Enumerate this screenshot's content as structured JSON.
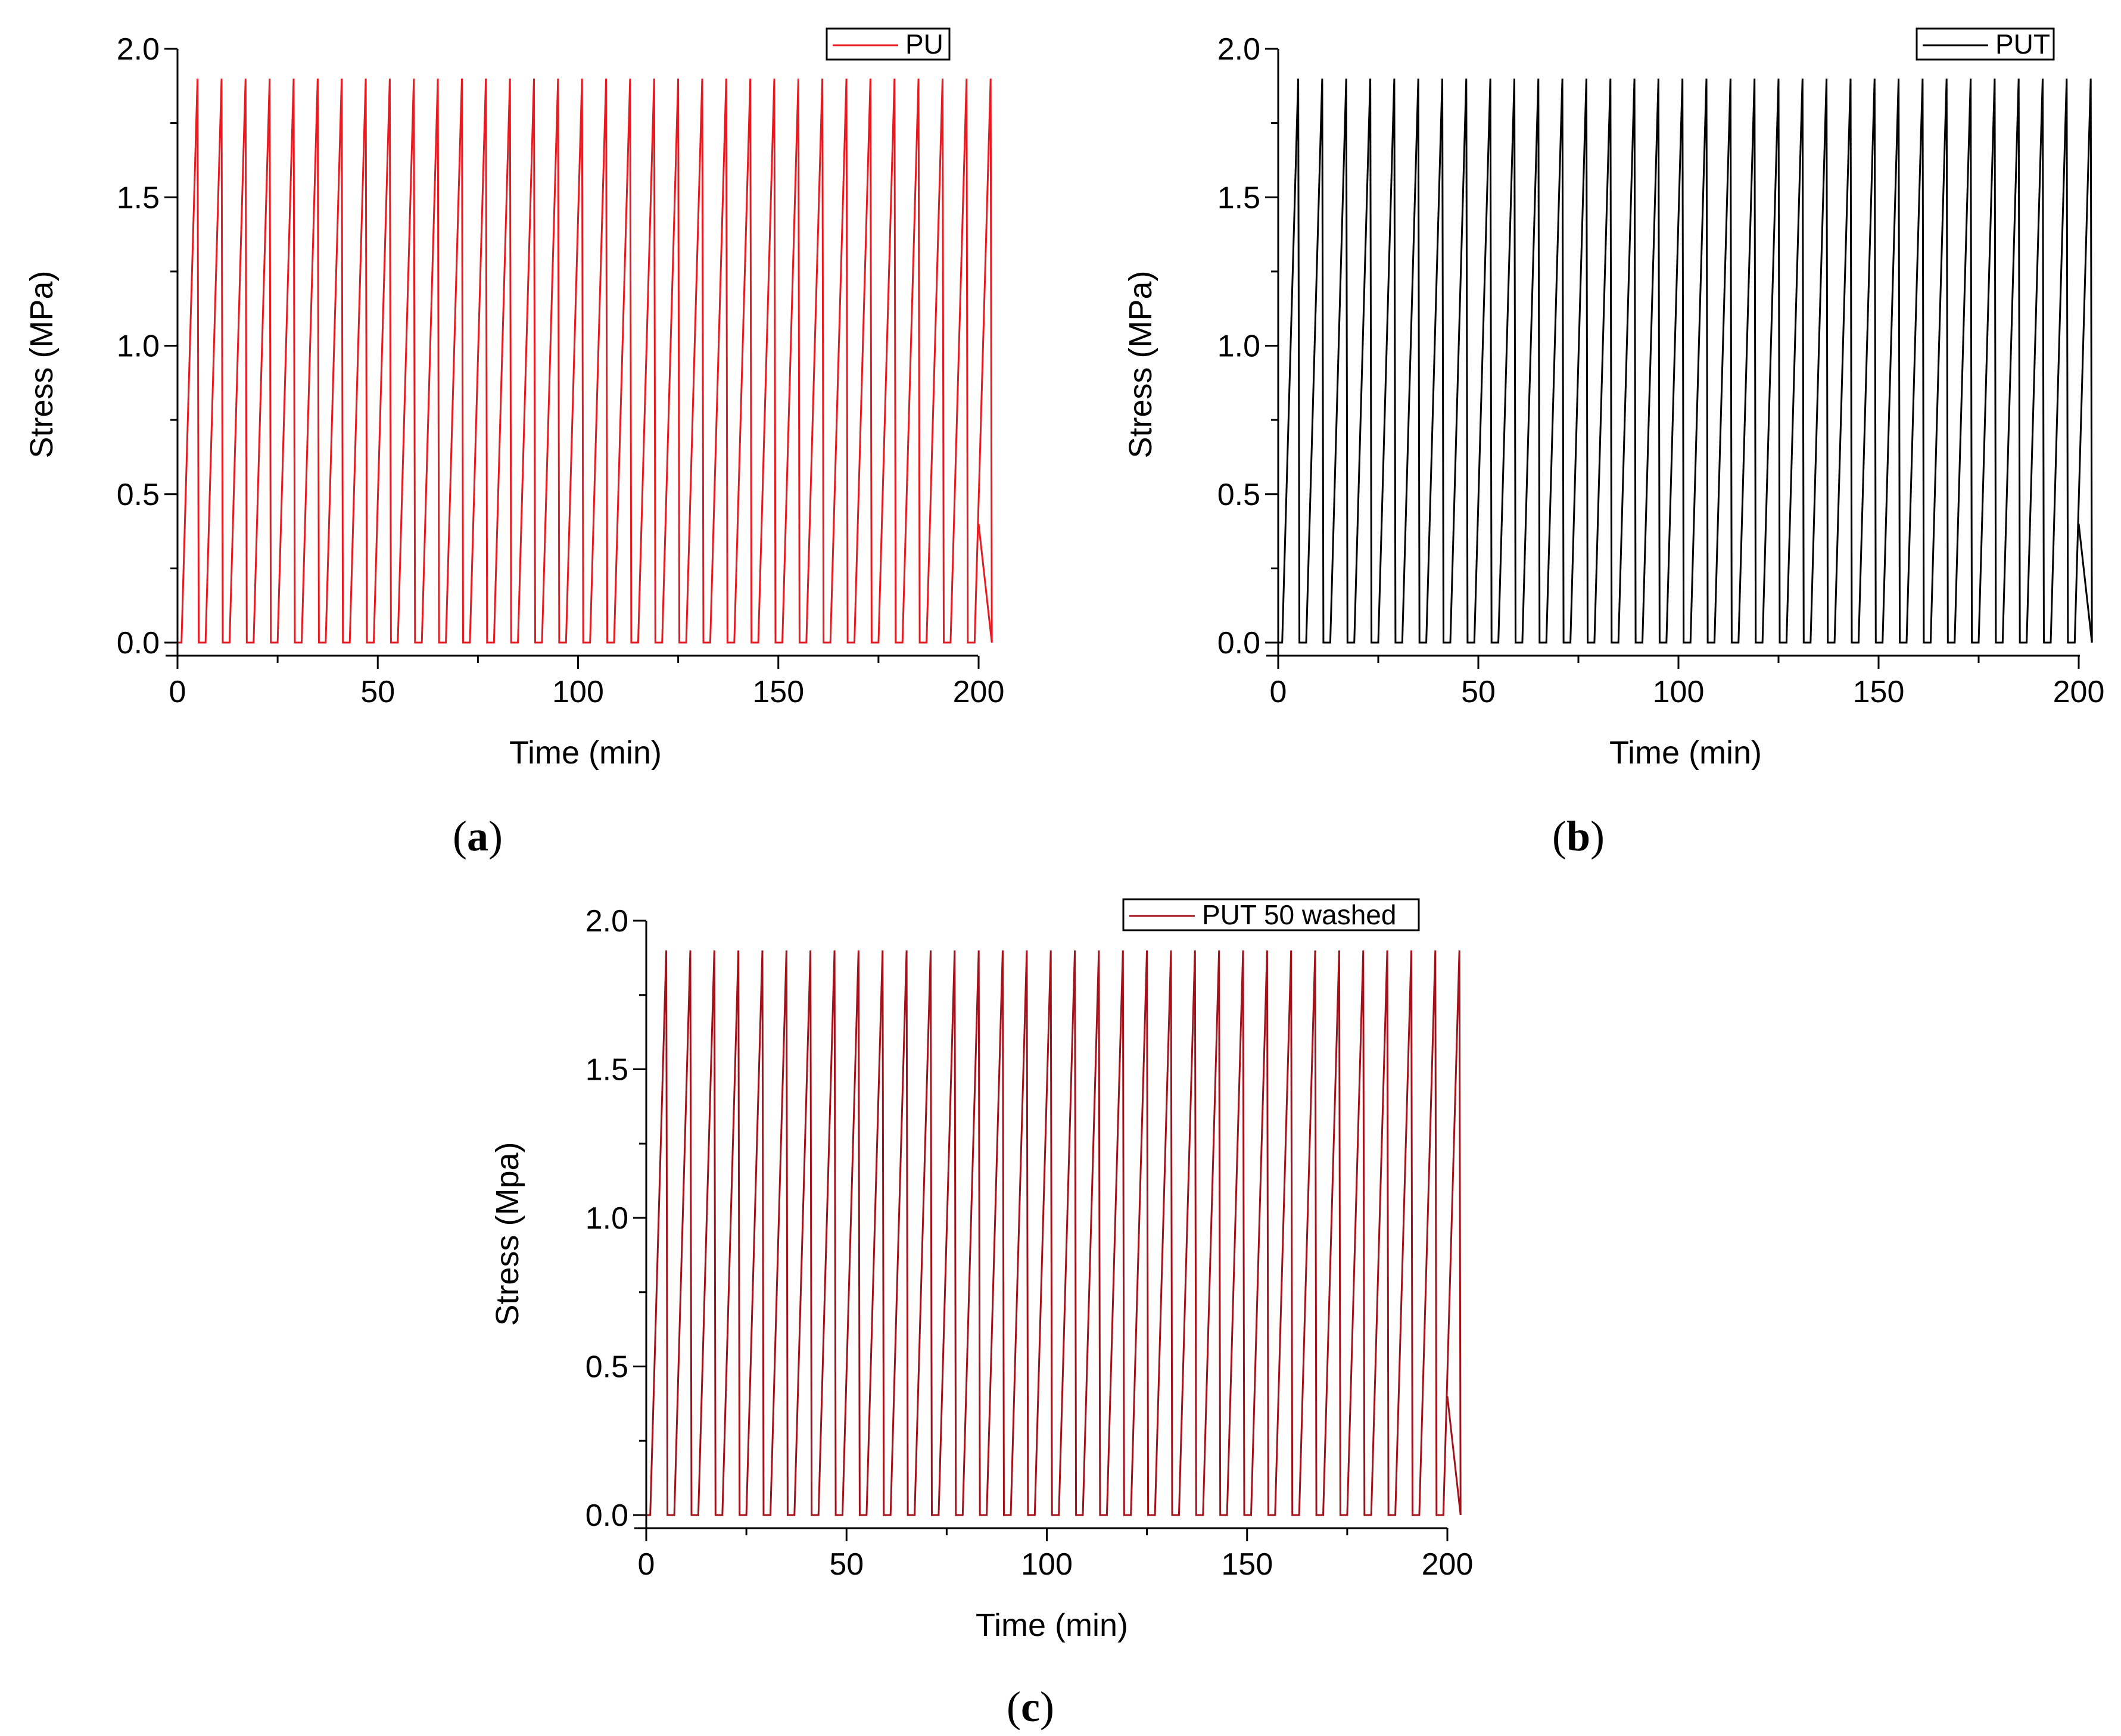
{
  "chart_data": [
    {
      "type": "line",
      "panel": "a",
      "title": "",
      "xlabel": "Time (min)",
      "ylabel": "Stress (MPa)",
      "xlim": [
        0,
        200
      ],
      "ylim": [
        0,
        2.0
      ],
      "xticks": [
        "0",
        "50",
        "100",
        "150",
        "200"
      ],
      "yticks": [
        "0.0",
        "0.5",
        "1.0",
        "1.5",
        "2.0"
      ],
      "legend": "top-right",
      "series": [
        {
          "name": "PU",
          "color": "#e8191f",
          "pattern": {
            "start": 1.0,
            "period": 6.0,
            "rise": 4.0,
            "fall": 0.3,
            "peak": 1.9,
            "base": 0.0,
            "cycles": 34,
            "end_x": 200,
            "end_y": 0.4
          }
        }
      ]
    },
    {
      "type": "line",
      "panel": "b",
      "title": "",
      "xlabel": "Time (min)",
      "ylabel": "Stress (MPa)",
      "xlim": [
        0,
        200
      ],
      "ylim": [
        0,
        2.0
      ],
      "xticks": [
        "0",
        "50",
        "100",
        "150",
        "200"
      ],
      "yticks": [
        "0.0",
        "0.5",
        "1.0",
        "1.5",
        "2.0"
      ],
      "legend": "top-right",
      "series": [
        {
          "name": "PUT",
          "color": "#000000",
          "pattern": {
            "start": 1.0,
            "period": 6.0,
            "rise": 4.0,
            "fall": 0.3,
            "peak": 1.9,
            "base": 0.0,
            "cycles": 34,
            "end_x": 200,
            "end_y": 0.4
          }
        }
      ]
    },
    {
      "type": "line",
      "panel": "c",
      "title": "",
      "xlabel": "Time (min)",
      "ylabel": "Stress (Mpa)",
      "xlim": [
        0,
        200
      ],
      "ylim": [
        0,
        2.0
      ],
      "xticks": [
        "0",
        "50",
        "100",
        "150",
        "200"
      ],
      "yticks": [
        "0.0",
        "0.5",
        "1.0",
        "1.5",
        "2.0"
      ],
      "legend": "top-right",
      "series": [
        {
          "name": "PUT 50 washed",
          "color": "#a3121a",
          "pattern": {
            "start": 1.0,
            "period": 6.0,
            "rise": 4.0,
            "fall": 0.3,
            "peak": 1.9,
            "base": 0.0,
            "cycles": 34,
            "end_x": 200,
            "end_y": 0.4
          }
        }
      ]
    }
  ],
  "panel_labels": [
    {
      "open": "(",
      "letter": "a",
      "close": ")"
    },
    {
      "open": "(",
      "letter": "b",
      "close": ")"
    },
    {
      "open": "(",
      "letter": "c",
      "close": ")"
    }
  ]
}
